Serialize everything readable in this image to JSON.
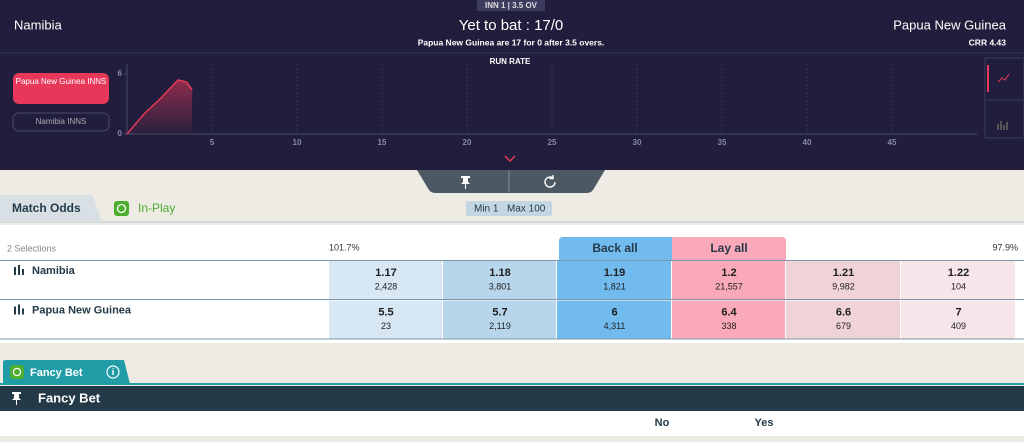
{
  "header": {
    "innings": "INN 1 | 3.5 OV",
    "team_left": "Namibia",
    "status": "Yet to bat : 17/0",
    "summary": "Papua New Guinea are 17 for 0 after 3.5 overs.",
    "team_right": "Papua New Guinea",
    "crr": "CRR 4.43"
  },
  "run_rate": {
    "title": "RUN RATE",
    "buttons": [
      "Papua New Guinea INNS",
      "Namibia INNS"
    ],
    "x": [
      0,
      1,
      2,
      3,
      3.5,
      3.83
    ],
    "values": [
      0,
      2,
      3.6,
      5.4,
      5.2,
      4.43
    ],
    "xlim": [
      0,
      50
    ],
    "ylim": [
      0,
      7
    ],
    "xticks": [
      5,
      10,
      15,
      20,
      25,
      30,
      35,
      40,
      45
    ],
    "yticks": [
      0,
      6
    ]
  },
  "market": {
    "tab": "Match Odds",
    "inplay": "In-Play",
    "min": "Min 1",
    "max": "Max 100",
    "selections": "2 Selections",
    "back_overround": "101.7%",
    "back_all": "Back all",
    "lay_all": "Lay all",
    "lay_overround": "97.9%",
    "runners": [
      {
        "name": "Namibia",
        "odds": [
          {
            "price": 1.17,
            "size": "2,428"
          },
          {
            "price": 1.18,
            "size": "3,801"
          },
          {
            "price": 1.19,
            "size": "1,821"
          },
          {
            "price": 1.2,
            "size": "21,557"
          },
          {
            "price": 1.21,
            "size": "9,982"
          },
          {
            "price": 1.22,
            "size": 104
          }
        ]
      },
      {
        "name": "Papua New Guinea",
        "odds": [
          {
            "price": 5.5,
            "size": 23
          },
          {
            "price": 5.7,
            "size": "2,119"
          },
          {
            "price": 6,
            "size": "4,311"
          },
          {
            "price": 6.4,
            "size": 338
          },
          {
            "price": 6.6,
            "size": 679
          },
          {
            "price": 7,
            "size": 409
          }
        ]
      }
    ]
  },
  "fancy": {
    "tab": "Fancy Bet",
    "header": "Fancy Bet",
    "no": "No",
    "yes": "Yes"
  }
}
